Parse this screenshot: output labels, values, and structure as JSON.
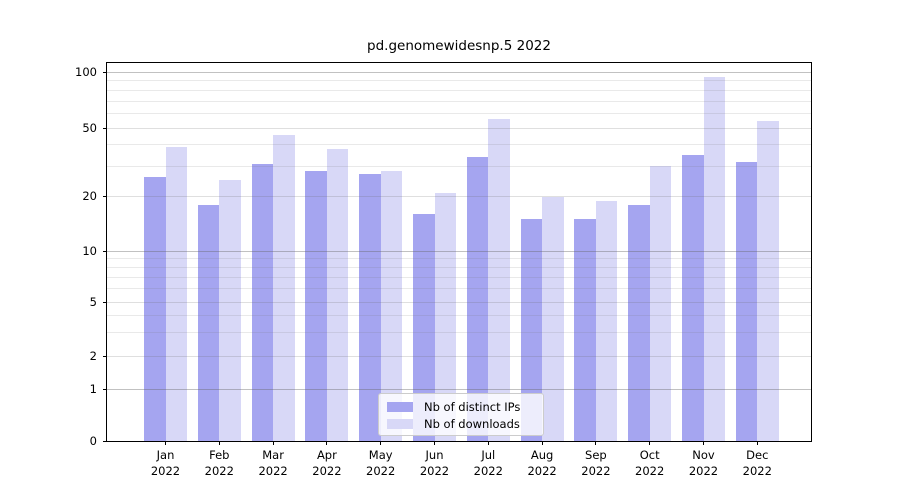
{
  "title": "pd.genomewidesnp.5 2022",
  "chart_data": {
    "type": "bar",
    "title": "pd.genomewidesnp.5 2022",
    "categories": [
      "Jan 2022",
      "Feb 2022",
      "Mar 2022",
      "Apr 2022",
      "May 2022",
      "Jun 2022",
      "Jul 2022",
      "Aug 2022",
      "Sep 2022",
      "Oct 2022",
      "Nov 2022",
      "Dec 2022"
    ],
    "series": [
      {
        "name": "Nb of distinct IPs",
        "color": "#a5a5f0",
        "values": [
          26,
          18,
          31,
          28,
          27,
          16,
          34,
          15,
          15,
          18,
          35,
          32
        ]
      },
      {
        "name": "Nb of downloads",
        "color": "#d8d8f7",
        "values": [
          39,
          25,
          46,
          38,
          28,
          21,
          56,
          20,
          19,
          30,
          94,
          55
        ]
      }
    ],
    "xlabel": "",
    "ylabel": "",
    "yscale": "symlog",
    "ylim": [
      0,
      112
    ],
    "yticks": [
      0,
      1,
      2,
      5,
      10,
      20,
      50,
      100
    ],
    "major_gridlines": [
      1,
      10,
      100
    ],
    "labeled_mid_gridlines": [
      2,
      5,
      20,
      50
    ],
    "minor_gridlines": [
      3,
      4,
      6,
      7,
      8,
      9,
      30,
      40,
      60,
      70,
      80,
      90
    ],
    "grid": true,
    "legend_position": "lower center"
  },
  "colors": {
    "bar_distinct_ips": "#a5a5f0",
    "bar_downloads": "#d8d8f7",
    "axis": "#000000",
    "grid_major": "#c6c6c6",
    "grid_minor": "#e9e9e9",
    "legend_border": "#cccccc",
    "background": "#ffffff"
  }
}
